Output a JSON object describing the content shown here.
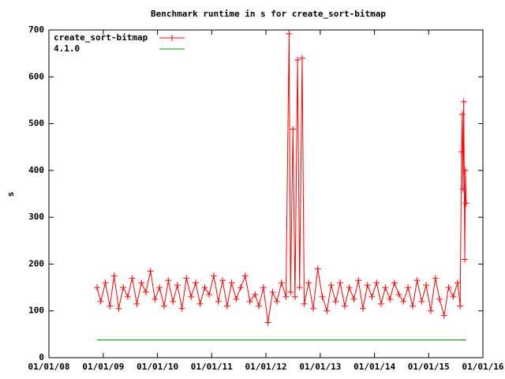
{
  "chart_data": {
    "type": "line",
    "title": "Benchmark runtime in s for create_sort-bitmap",
    "y_label": "s",
    "xlim": [
      "2008-01-01",
      "2016-01-01"
    ],
    "xticks": [
      {
        "value": "2008-01-01",
        "label": "01/01/08"
      },
      {
        "value": "2009-01-01",
        "label": "01/01/09"
      },
      {
        "value": "2010-01-01",
        "label": "01/01/10"
      },
      {
        "value": "2011-01-01",
        "label": "01/01/11"
      },
      {
        "value": "2012-01-01",
        "label": "01/01/12"
      },
      {
        "value": "2013-01-01",
        "label": "01/01/13"
      },
      {
        "value": "2014-01-01",
        "label": "01/01/14"
      },
      {
        "value": "2015-01-01",
        "label": "01/01/15"
      },
      {
        "value": "2016-01-01",
        "label": "01/01/16"
      }
    ],
    "ylim": [
      0,
      700
    ],
    "yticks": [
      0,
      100,
      200,
      300,
      400,
      500,
      600,
      700
    ],
    "legend": "upper-left",
    "series": [
      {
        "name": "create_sort-bitmap",
        "color": "#ff0000",
        "markers": true,
        "x": [
          "2008-11-20",
          "2008-12-15",
          "2009-01-15",
          "2009-02-15",
          "2009-03-15",
          "2009-04-15",
          "2009-05-15",
          "2009-06-15",
          "2009-07-15",
          "2009-08-15",
          "2009-09-15",
          "2009-10-15",
          "2009-11-15",
          "2009-12-15",
          "2010-01-15",
          "2010-02-15",
          "2010-03-15",
          "2010-04-15",
          "2010-05-15",
          "2010-06-15",
          "2010-07-15",
          "2010-08-15",
          "2010-09-15",
          "2010-10-15",
          "2010-11-15",
          "2010-12-15",
          "2011-01-15",
          "2011-02-15",
          "2011-03-15",
          "2011-04-15",
          "2011-05-15",
          "2011-06-15",
          "2011-07-15",
          "2011-08-15",
          "2011-09-15",
          "2011-10-20",
          "2011-11-15",
          "2011-12-15",
          "2012-01-15",
          "2012-02-15",
          "2012-03-15",
          "2012-04-15",
          "2012-05-15",
          "2012-06-05",
          "2012-06-15",
          "2012-07-01",
          "2012-07-15",
          "2012-08-01",
          "2012-08-15",
          "2012-09-01",
          "2012-09-15",
          "2012-10-15",
          "2012-11-15",
          "2012-12-15",
          "2013-01-15",
          "2013-02-15",
          "2013-03-15",
          "2013-04-15",
          "2013-05-15",
          "2013-06-15",
          "2013-07-15",
          "2013-08-15",
          "2013-09-15",
          "2013-10-15",
          "2013-11-15",
          "2013-12-15",
          "2014-01-15",
          "2014-02-15",
          "2014-03-15",
          "2014-04-15",
          "2014-05-15",
          "2014-06-15",
          "2014-07-15",
          "2014-08-15",
          "2014-09-15",
          "2014-10-15",
          "2014-11-15",
          "2014-12-15",
          "2015-01-15",
          "2015-02-15",
          "2015-03-15",
          "2015-04-15",
          "2015-05-15",
          "2015-06-15",
          "2015-07-15",
          "2015-08-01",
          "2015-08-10",
          "2015-08-15",
          "2015-08-20",
          "2015-08-25",
          "2015-09-01",
          "2015-09-05",
          "2015-09-10"
        ],
        "values": [
          150,
          120,
          160,
          110,
          175,
          105,
          150,
          130,
          170,
          115,
          160,
          140,
          185,
          125,
          150,
          110,
          165,
          120,
          155,
          105,
          170,
          130,
          160,
          115,
          150,
          135,
          175,
          120,
          165,
          110,
          160,
          125,
          150,
          175,
          120,
          135,
          110,
          150,
          75,
          140,
          120,
          160,
          130,
          692,
          140,
          488,
          130,
          636,
          150,
          640,
          115,
          160,
          105,
          190,
          130,
          100,
          155,
          120,
          160,
          110,
          150,
          125,
          165,
          105,
          155,
          130,
          160,
          115,
          150,
          125,
          160,
          135,
          120,
          150,
          110,
          165,
          120,
          155,
          100,
          170,
          125,
          90,
          150,
          130,
          160,
          110,
          440,
          520,
          360,
          547,
          210,
          400,
          330
        ]
      },
      {
        "name": "4.1.0",
        "color": "#00a000",
        "markers": false,
        "x": [
          "2008-11-20",
          "2015-09-10"
        ],
        "values": [
          38,
          38
        ]
      }
    ]
  }
}
